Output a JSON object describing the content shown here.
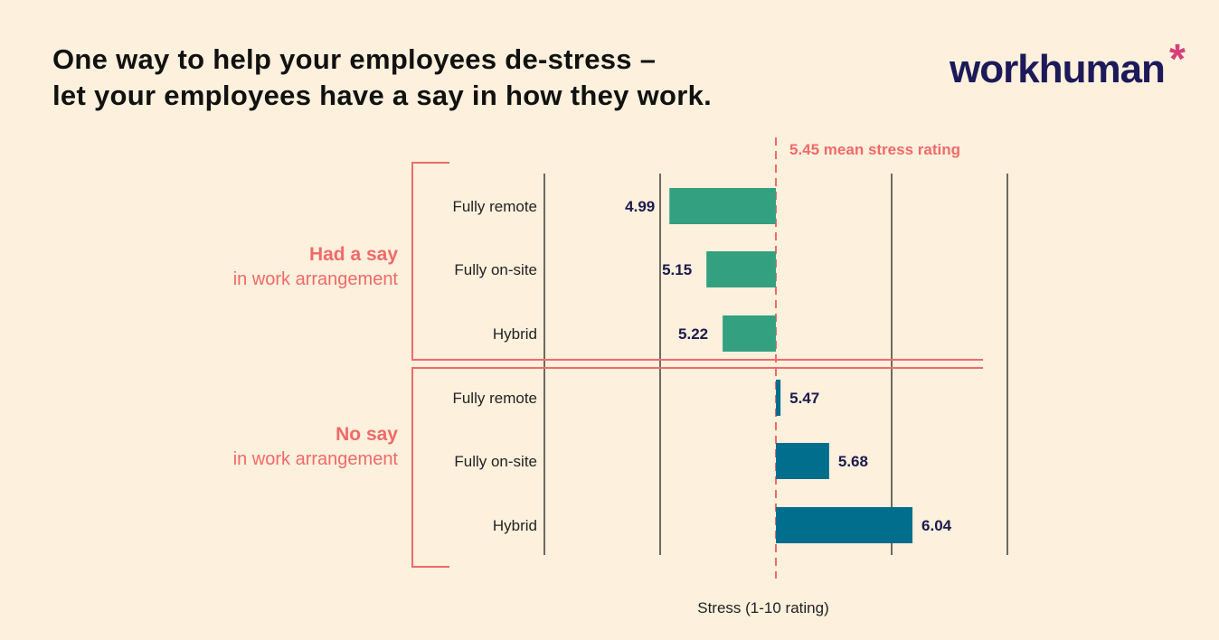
{
  "title_lines": [
    "One way to help your employees de-stress –",
    "let your employees have a say in how they work."
  ],
  "logo": "workhuman*",
  "colors": {
    "background": "#fdf0dc",
    "had_say": "#33a080",
    "no_say": "#006e8c",
    "accent": "#f06a6a",
    "label": "#1c1a4f"
  },
  "chart_data": {
    "type": "bar",
    "orientation": "horizontal",
    "xlabel": "Stress (1-10 rating)",
    "reference_line": {
      "value": 5.45,
      "label": "5.45 mean stress rating"
    },
    "groups": [
      {
        "title": "Had a say",
        "subtitle": "in work arrangement",
        "categories": [
          "Fully remote",
          "Fully on-site",
          "Hybrid"
        ],
        "values": [
          4.99,
          5.15,
          5.22
        ]
      },
      {
        "title": "No say",
        "subtitle": "in work arrangement",
        "categories": [
          "Fully remote",
          "Fully on-site",
          "Hybrid"
        ],
        "values": [
          5.47,
          5.68,
          6.04
        ]
      }
    ],
    "value_labels": [
      "4.99",
      "5.15",
      "5.22",
      "5.47",
      "5.68",
      "6.04"
    ],
    "grid": true
  }
}
